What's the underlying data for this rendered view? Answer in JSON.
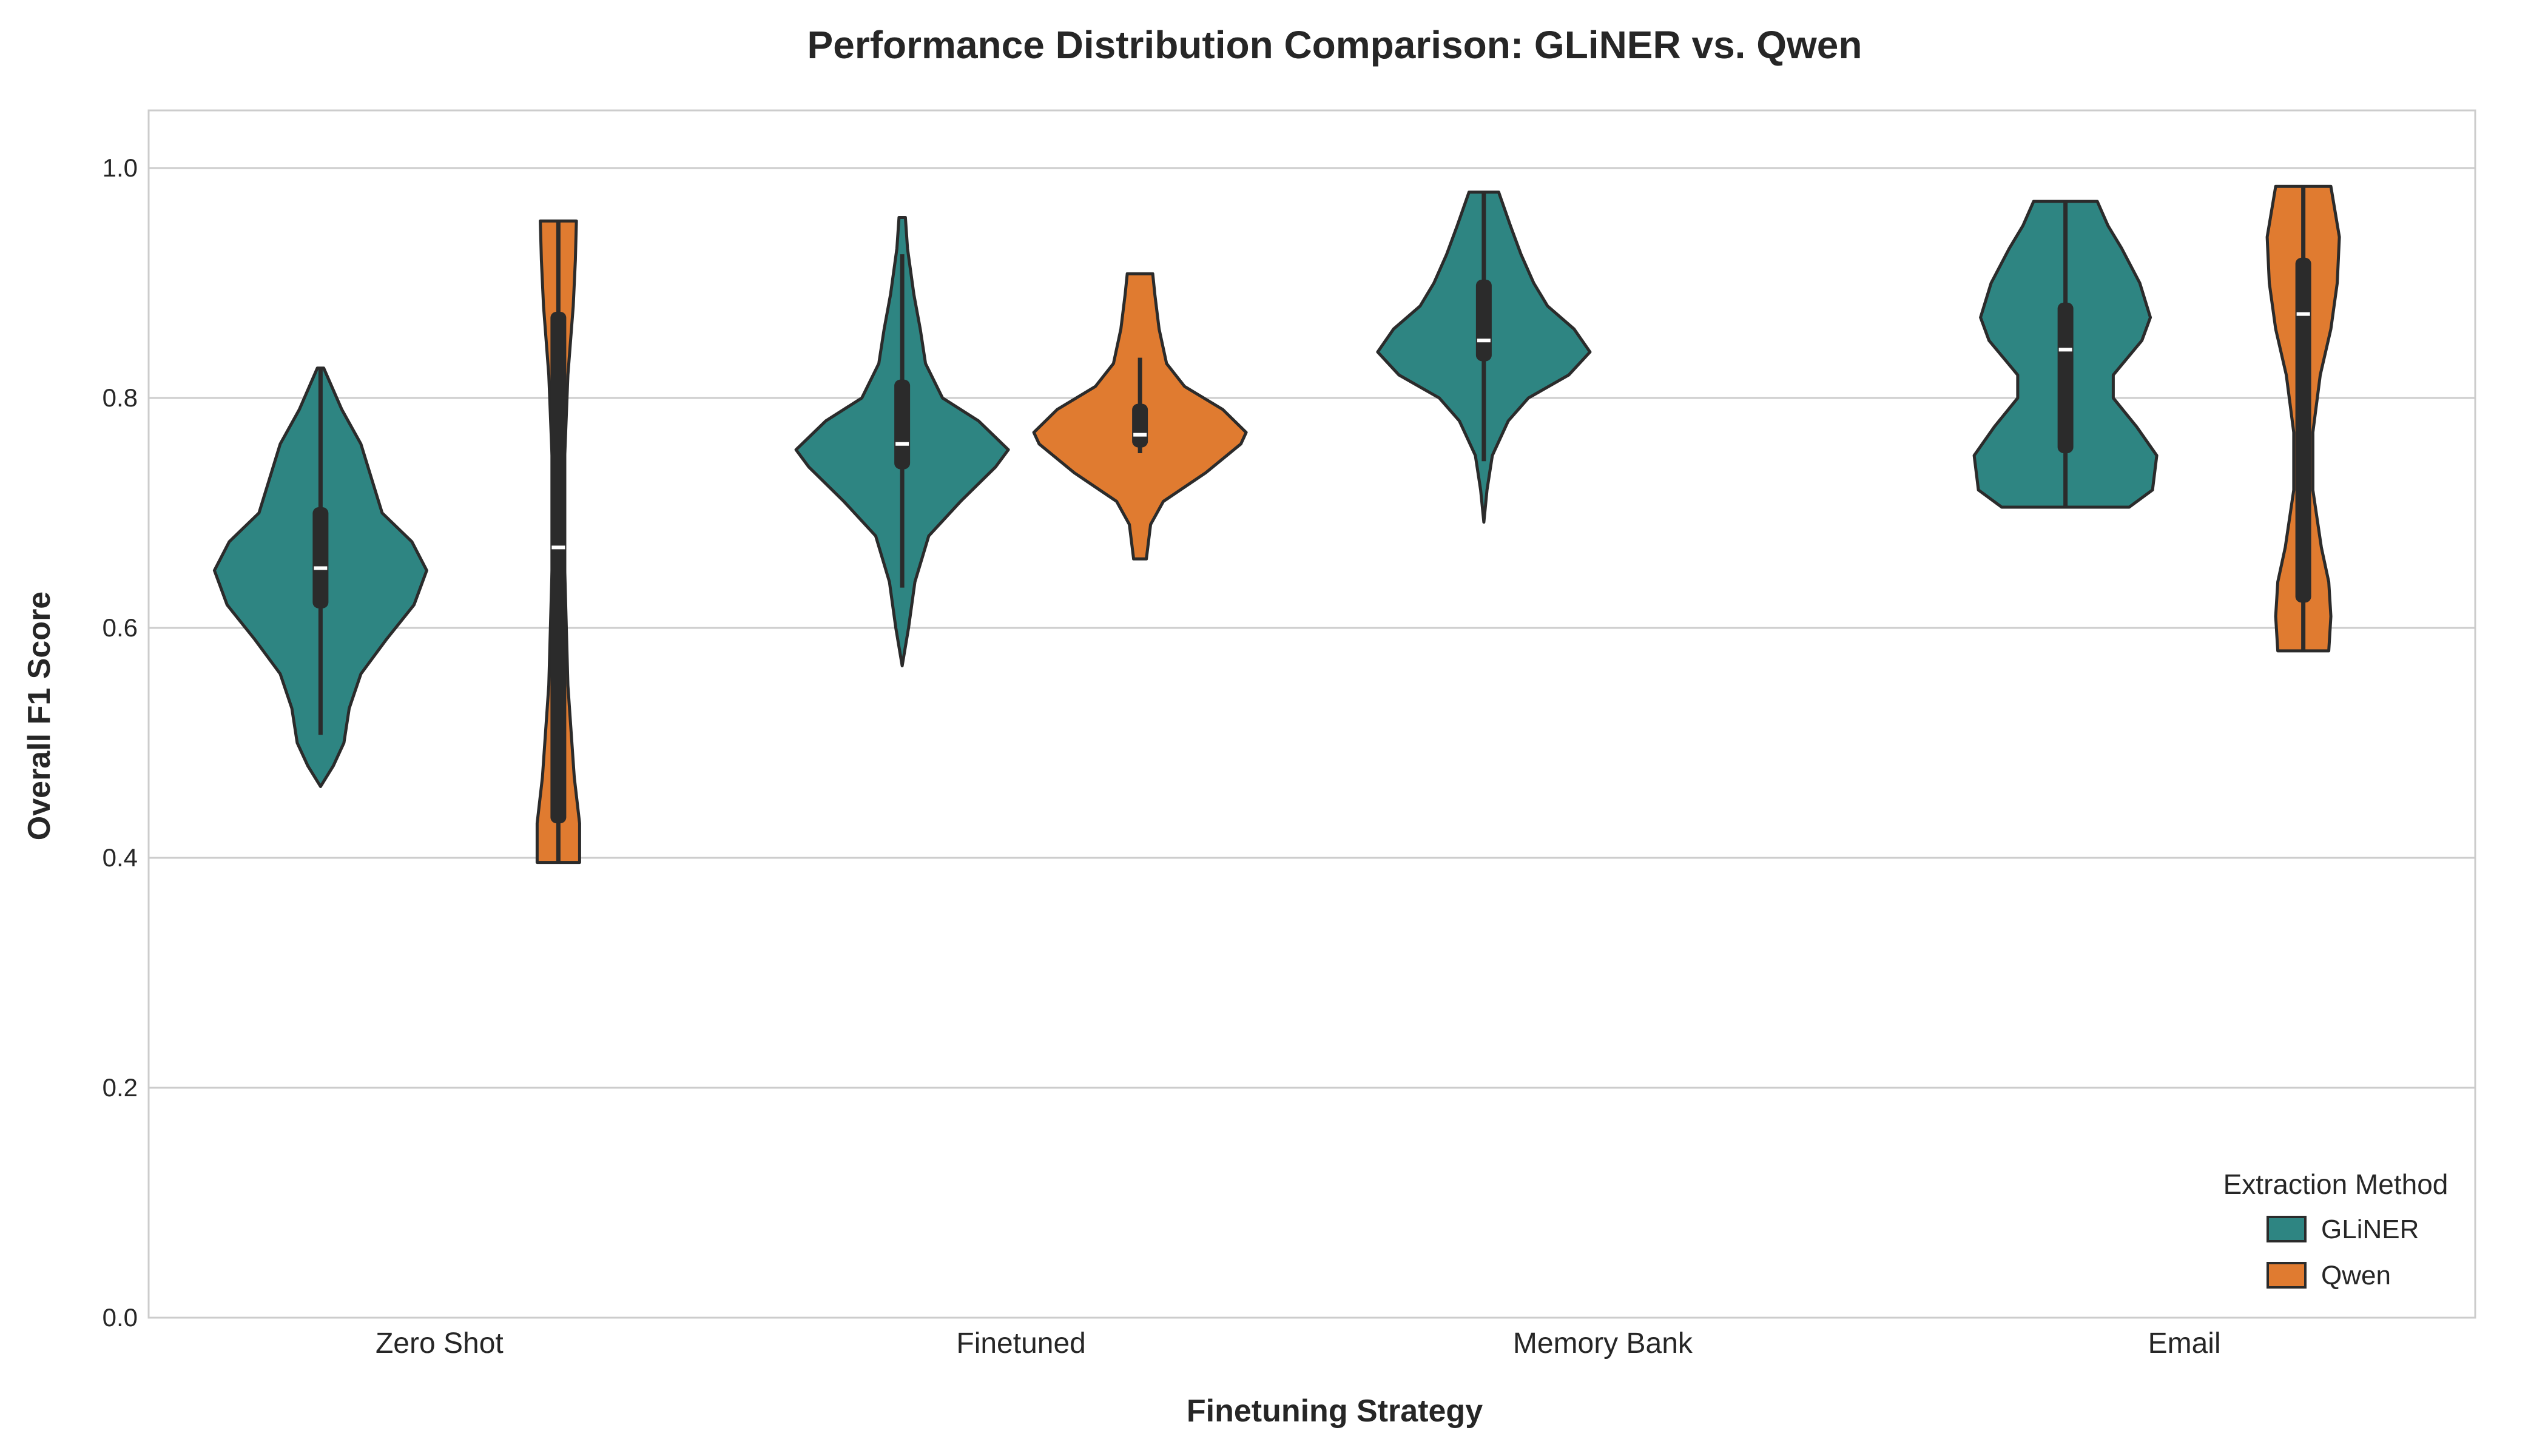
{
  "chart_data": {
    "type": "violin",
    "title": "Performance Distribution Comparison: GLiNER vs. Qwen",
    "xlabel": "Finetuning Strategy",
    "ylabel": "Overall F1 Score",
    "ylim": [
      0.0,
      1.05
    ],
    "yticks": [
      0.0,
      0.2,
      0.4,
      0.6,
      0.8,
      1.0
    ],
    "ytick_labels": [
      "0.0",
      "0.2",
      "0.4",
      "0.6",
      "0.8",
      "1.0"
    ],
    "grid": true,
    "legend": {
      "title": "Extraction Method",
      "placement": "lower-right"
    },
    "categories": [
      "Zero Shot",
      "Finetuned",
      "Memory Bank",
      "Email"
    ],
    "colors": {
      "GLiNER": "#2e8582",
      "Qwen": "#e07b30",
      "outline": "#2b2b2b"
    },
    "series": [
      {
        "name": "GLiNER",
        "color": "#2e8582",
        "violins": [
          {
            "category": "Zero Shot",
            "min": 0.462,
            "max": 0.826,
            "q1": 0.617,
            "median": 0.652,
            "q3": 0.705,
            "whisker_low": 0.507,
            "whisker_high": 0.826,
            "profile": [
              [
                0.462,
                0.0
              ],
              [
                0.48,
                0.12
              ],
              [
                0.5,
                0.22
              ],
              [
                0.53,
                0.27
              ],
              [
                0.56,
                0.38
              ],
              [
                0.59,
                0.62
              ],
              [
                0.62,
                0.88
              ],
              [
                0.65,
                1.0
              ],
              [
                0.675,
                0.86
              ],
              [
                0.7,
                0.58
              ],
              [
                0.73,
                0.48
              ],
              [
                0.76,
                0.38
              ],
              [
                0.79,
                0.2
              ],
              [
                0.826,
                0.03
              ]
            ]
          },
          {
            "category": "Finetuned",
            "min": 0.567,
            "max": 0.957,
            "q1": 0.738,
            "median": 0.76,
            "q3": 0.816,
            "whisker_low": 0.635,
            "whisker_high": 0.925,
            "profile": [
              [
                0.567,
                0.0
              ],
              [
                0.6,
                0.06
              ],
              [
                0.64,
                0.12
              ],
              [
                0.68,
                0.25
              ],
              [
                0.71,
                0.55
              ],
              [
                0.74,
                0.88
              ],
              [
                0.755,
                1.0
              ],
              [
                0.78,
                0.72
              ],
              [
                0.8,
                0.38
              ],
              [
                0.83,
                0.22
              ],
              [
                0.86,
                0.17
              ],
              [
                0.89,
                0.11
              ],
              [
                0.93,
                0.05
              ],
              [
                0.957,
                0.03
              ]
            ]
          },
          {
            "category": "Memory Bank",
            "min": 0.692,
            "max": 0.979,
            "q1": 0.832,
            "median": 0.85,
            "q3": 0.903,
            "whisker_low": 0.745,
            "whisker_high": 0.979,
            "profile": [
              [
                0.692,
                0.0
              ],
              [
                0.72,
                0.03
              ],
              [
                0.75,
                0.08
              ],
              [
                0.78,
                0.23
              ],
              [
                0.8,
                0.42
              ],
              [
                0.82,
                0.8
              ],
              [
                0.84,
                1.0
              ],
              [
                0.86,
                0.85
              ],
              [
                0.88,
                0.6
              ],
              [
                0.9,
                0.47
              ],
              [
                0.925,
                0.35
              ],
              [
                0.95,
                0.25
              ],
              [
                0.979,
                0.14
              ]
            ]
          },
          {
            "category": "Email",
            "min": 0.705,
            "max": 0.971,
            "q1": 0.752,
            "median": 0.842,
            "q3": 0.883,
            "whisker_low": 0.705,
            "whisker_high": 0.971,
            "profile": [
              [
                0.705,
                0.6
              ],
              [
                0.72,
                0.82
              ],
              [
                0.75,
                0.86
              ],
              [
                0.775,
                0.67
              ],
              [
                0.8,
                0.45
              ],
              [
                0.82,
                0.45
              ],
              [
                0.85,
                0.72
              ],
              [
                0.87,
                0.8
              ],
              [
                0.9,
                0.7
              ],
              [
                0.93,
                0.53
              ],
              [
                0.95,
                0.4
              ],
              [
                0.971,
                0.3
              ]
            ]
          }
        ]
      },
      {
        "name": "Qwen",
        "color": "#e07b30",
        "violins": [
          {
            "category": "Zero Shot",
            "min": 0.396,
            "max": 0.954,
            "q1": 0.43,
            "median": 0.67,
            "q3": 0.875,
            "whisker_low": 0.396,
            "whisker_high": 0.954,
            "profile": [
              [
                0.396,
                0.2
              ],
              [
                0.43,
                0.2
              ],
              [
                0.47,
                0.15
              ],
              [
                0.55,
                0.09
              ],
              [
                0.65,
                0.06
              ],
              [
                0.75,
                0.06
              ],
              [
                0.82,
                0.09
              ],
              [
                0.88,
                0.14
              ],
              [
                0.92,
                0.16
              ],
              [
                0.954,
                0.17
              ]
            ]
          },
          {
            "category": "Finetuned",
            "min": 0.66,
            "max": 0.908,
            "q1": 0.757,
            "median": 0.768,
            "q3": 0.795,
            "whisker_low": 0.752,
            "whisker_high": 0.835,
            "profile": [
              [
                0.66,
                0.06
              ],
              [
                0.69,
                0.1
              ],
              [
                0.71,
                0.22
              ],
              [
                0.735,
                0.62
              ],
              [
                0.76,
                0.95
              ],
              [
                0.77,
                1.0
              ],
              [
                0.79,
                0.78
              ],
              [
                0.81,
                0.42
              ],
              [
                0.83,
                0.25
              ],
              [
                0.86,
                0.18
              ],
              [
                0.89,
                0.14
              ],
              [
                0.908,
                0.12
              ]
            ]
          },
          {
            "category": "Email",
            "min": 0.58,
            "max": 0.984,
            "q1": 0.622,
            "median": 0.873,
            "q3": 0.922,
            "whisker_low": 0.58,
            "whisker_high": 0.984,
            "profile": [
              [
                0.58,
                0.24
              ],
              [
                0.61,
                0.26
              ],
              [
                0.64,
                0.24
              ],
              [
                0.67,
                0.17
              ],
              [
                0.72,
                0.09
              ],
              [
                0.77,
                0.09
              ],
              [
                0.82,
                0.16
              ],
              [
                0.86,
                0.26
              ],
              [
                0.9,
                0.32
              ],
              [
                0.94,
                0.34
              ],
              [
                0.984,
                0.26
              ]
            ]
          }
        ]
      }
    ]
  }
}
